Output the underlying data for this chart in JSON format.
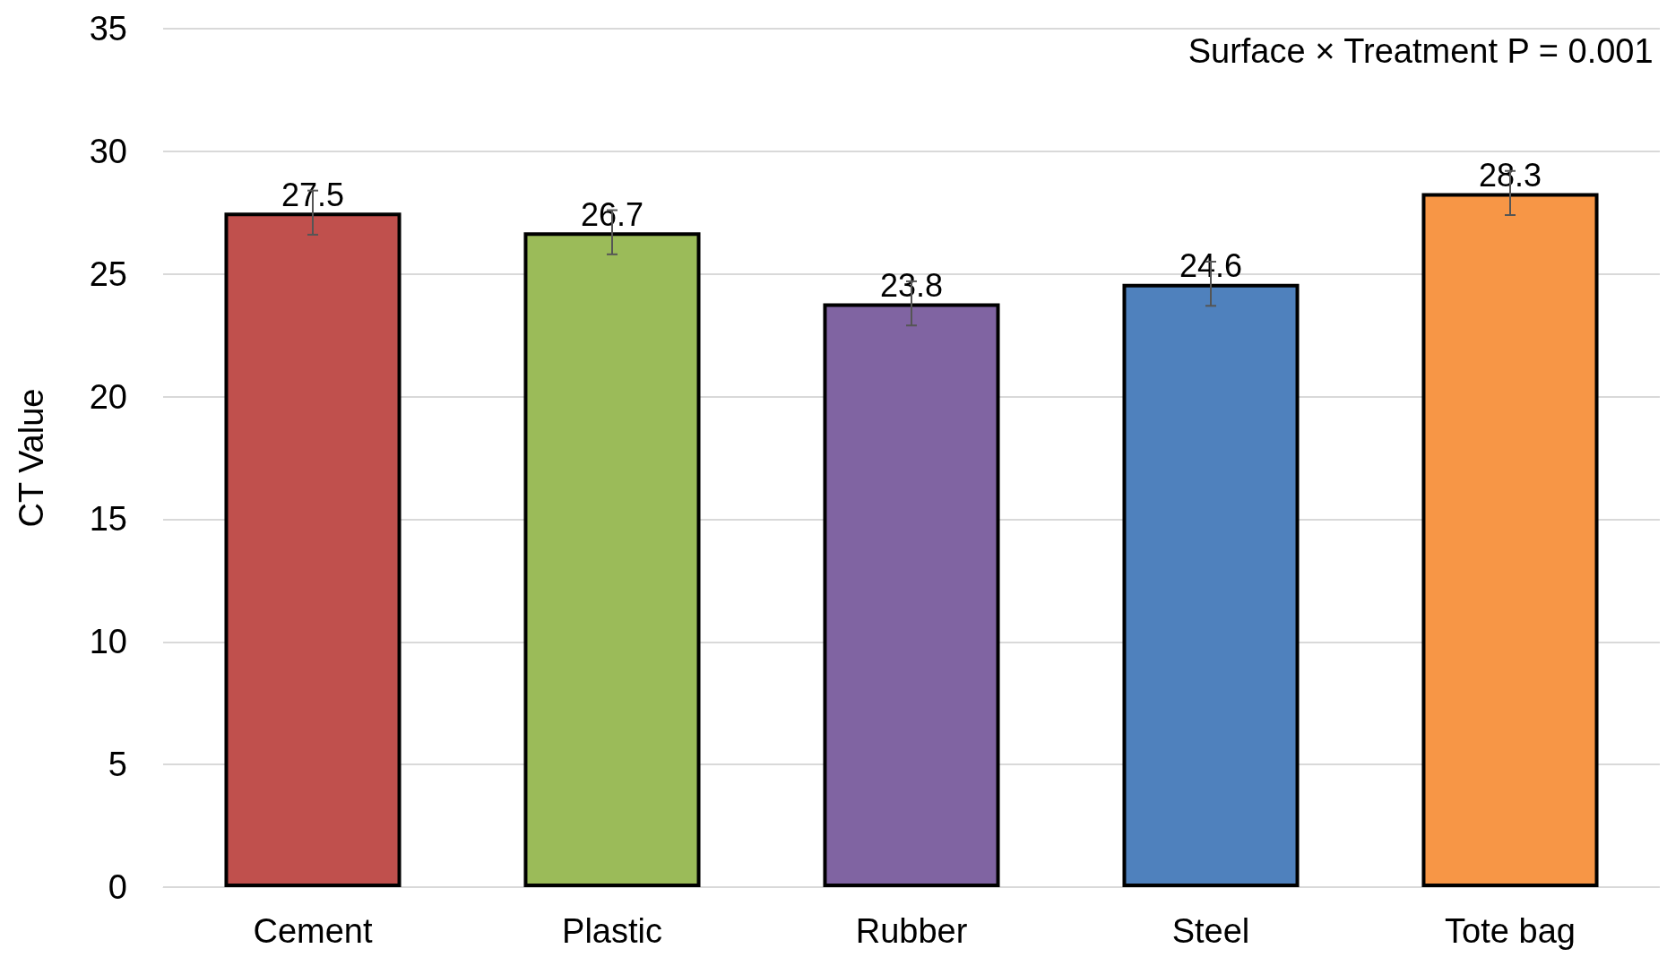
{
  "chart_data": {
    "type": "bar",
    "ylabel": "CT Value",
    "categories": [
      "Cement",
      "Plastic",
      "Rubber",
      "Steel",
      "Tote bag"
    ],
    "values": [
      27.5,
      26.7,
      23.8,
      24.6,
      28.3
    ],
    "colors": [
      "#c0504d",
      "#9bbb59",
      "#8064a2",
      "#4f81bd",
      "#f79646"
    ],
    "errors": [
      0.9,
      0.9,
      0.9,
      0.9,
      0.9
    ],
    "ylim": [
      0,
      35
    ],
    "yticks": [
      0,
      5,
      10,
      15,
      20,
      25,
      30,
      35
    ],
    "grid": "y",
    "data_labels": true,
    "annotations": [
      "Surface × Treatment P = 0.001"
    ]
  }
}
